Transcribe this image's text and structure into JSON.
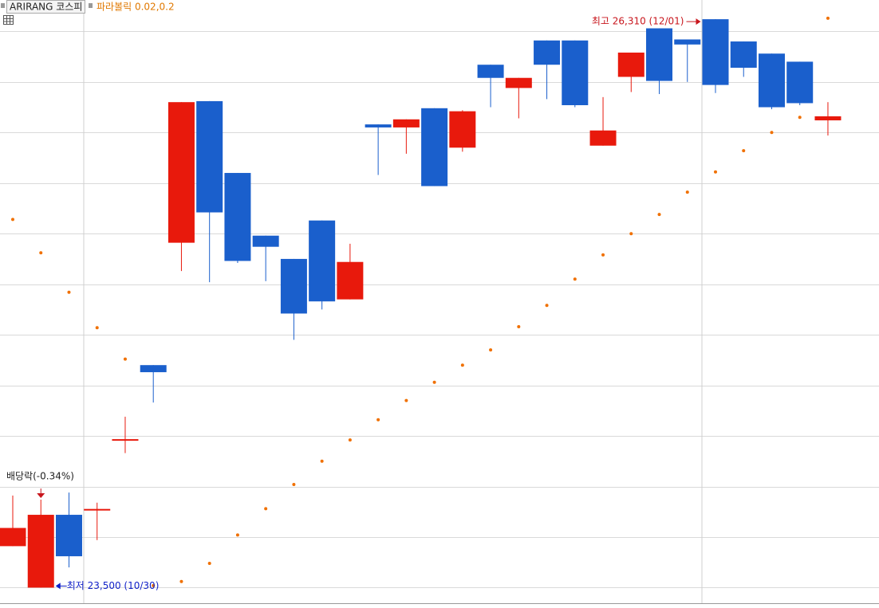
{
  "chart_data": {
    "type": "candlestick",
    "title": "ARIRANG 코스피",
    "indicator": "파라볼릭 0.02,0.2",
    "up_color": "#e8190c",
    "down_color": "#1a5fcc",
    "sar_color": "#f07000",
    "ylim": [
      23415,
      26405
    ],
    "yticks": [
      23500,
      23750,
      24000,
      24250,
      24500,
      24750,
      25000,
      25250,
      25500,
      25750,
      26000,
      26250
    ],
    "grid": true,
    "candles": {
      "open": [
        23705,
        23500,
        23860,
        23885,
        24230,
        24600,
        25205,
        25905,
        25550,
        25240,
        25125,
        25315,
        24925,
        25790,
        25775,
        25870,
        25675,
        26085,
        25970,
        26205,
        26205,
        25685,
        26025,
        26265,
        26210,
        26310,
        26200,
        26140,
        26100,
        25810
      ],
      "high": [
        23955,
        23935,
        23970,
        23920,
        24345,
        24600,
        25900,
        25905,
        25550,
        25240,
        25125,
        25315,
        25200,
        25790,
        25815,
        25870,
        25860,
        26085,
        26020,
        26205,
        26205,
        25925,
        26145,
        26265,
        26210,
        26310,
        26200,
        26140,
        26100,
        25900
      ],
      "low": [
        23705,
        23500,
        23600,
        23735,
        24165,
        24415,
        25065,
        25010,
        25105,
        25015,
        24725,
        24875,
        24925,
        25540,
        25645,
        25485,
        25655,
        25875,
        25820,
        25915,
        25875,
        25685,
        25950,
        25940,
        26000,
        25945,
        26025,
        25865,
        25885,
        25735
      ],
      "close": [
        23795,
        23860,
        23655,
        23885,
        24230,
        24565,
        25900,
        25355,
        25115,
        25185,
        24855,
        24915,
        25110,
        25775,
        25815,
        25485,
        25855,
        26020,
        26020,
        26085,
        25885,
        25760,
        26145,
        26005,
        26185,
        25985,
        26070,
        25875,
        25895,
        25830
      ]
    },
    "sar": [
      25320,
      25155,
      24960,
      24785,
      24630,
      23510,
      23530,
      23620,
      23760,
      23890,
      24010,
      24125,
      24230,
      24330,
      24425,
      24515,
      24600,
      24675,
      24790,
      24895,
      25025,
      25145,
      25250,
      25345,
      25455,
      25555,
      25660,
      25750,
      25825,
      26315
    ],
    "annotations": {
      "dividend": "배당락(-0.34%)",
      "high": "최고 26,310 (12/01)",
      "low": "최저 23,500 (10/30)"
    }
  }
}
